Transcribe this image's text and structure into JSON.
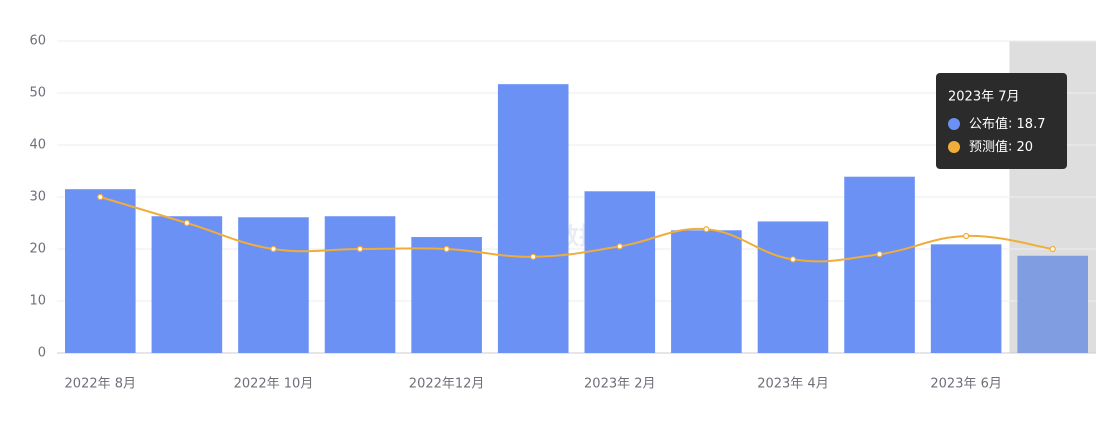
{
  "chart_data": {
    "type": "bar-line",
    "categories": [
      "2022年 8月",
      null,
      "2022年 10月",
      null,
      "2022年12月",
      null,
      "2023年 2月",
      null,
      "2023年 4月",
      null,
      "2023年 6月",
      null
    ],
    "series": [
      {
        "name": "公布值",
        "type": "bar",
        "color": "#6b91f5",
        "values": [
          31.5,
          26.3,
          26.1,
          26.3,
          22.3,
          51.7,
          31.1,
          23.6,
          25.3,
          33.9,
          20.9,
          18.7
        ]
      },
      {
        "name": "预测值",
        "type": "line",
        "color": "#f0ad3a",
        "values": [
          30,
          25,
          20,
          20,
          20,
          18.5,
          20.5,
          23.8,
          18,
          19,
          22.5,
          20
        ]
      }
    ],
    "ylim": [
      0,
      60
    ],
    "yticks": [
      0,
      10,
      20,
      30,
      40,
      50,
      60
    ],
    "grid": true,
    "watermark": "金十数据",
    "tooltip": {
      "title": "2023年 7月",
      "index": 11
    }
  }
}
